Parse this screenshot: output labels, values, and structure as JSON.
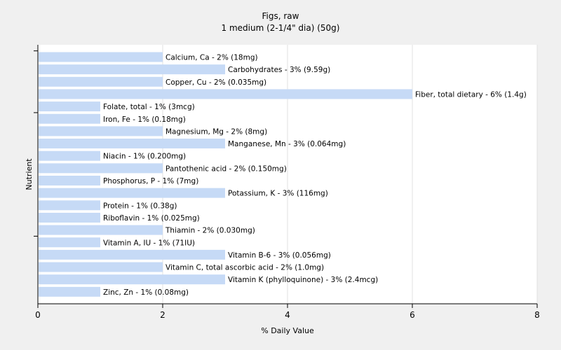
{
  "chart_data": {
    "type": "bar",
    "orientation": "horizontal",
    "title": "Figs, raw",
    "subtitle": "1 medium (2-1/4\" dia) (50g)",
    "xlabel": "% Daily Value",
    "ylabel": "Nutrient",
    "xlim": [
      0,
      8
    ],
    "xticks": [
      "0",
      "2",
      "4",
      "6",
      "8"
    ],
    "grid": true,
    "bar_color": "#c6daf6",
    "categories": [
      "Calcium, Ca",
      "Carbohydrates",
      "Copper, Cu",
      "Fiber, total dietary",
      "Folate, total",
      "Iron, Fe",
      "Magnesium, Mg",
      "Manganese, Mn",
      "Niacin",
      "Pantothenic acid",
      "Phosphorus, P",
      "Potassium, K",
      "Protein",
      "Riboflavin",
      "Thiamin",
      "Vitamin A, IU",
      "Vitamin B-6",
      "Vitamin C, total ascorbic acid",
      "Vitamin K (phylloquinone)",
      "Zinc, Zn"
    ],
    "values": [
      2,
      3,
      2,
      6,
      1,
      1,
      2,
      3,
      1,
      2,
      1,
      3,
      1,
      1,
      2,
      1,
      3,
      2,
      3,
      1
    ],
    "data_labels": [
      "Calcium, Ca - 2% (18mg)",
      "Carbohydrates - 3% (9.59g)",
      "Copper, Cu - 2% (0.035mg)",
      "Fiber, total dietary - 6% (1.4g)",
      "Folate, total - 1% (3mcg)",
      "Iron, Fe - 1% (0.18mg)",
      "Magnesium, Mg - 2% (8mg)",
      "Manganese, Mn - 3% (0.064mg)",
      "Niacin - 1% (0.200mg)",
      "Pantothenic acid - 2% (0.150mg)",
      "Phosphorus, P - 1% (7mg)",
      "Potassium, K - 3% (116mg)",
      "Protein - 1% (0.38g)",
      "Riboflavin - 1% (0.025mg)",
      "Thiamin - 2% (0.030mg)",
      "Vitamin A, IU - 1% (71IU)",
      "Vitamin B-6 - 3% (0.056mg)",
      "Vitamin C, total ascorbic acid - 2% (1.0mg)",
      "Vitamin K (phylloquinone) - 3% (2.4mcg)",
      "Zinc, Zn - 1% (0.08mg)"
    ]
  }
}
